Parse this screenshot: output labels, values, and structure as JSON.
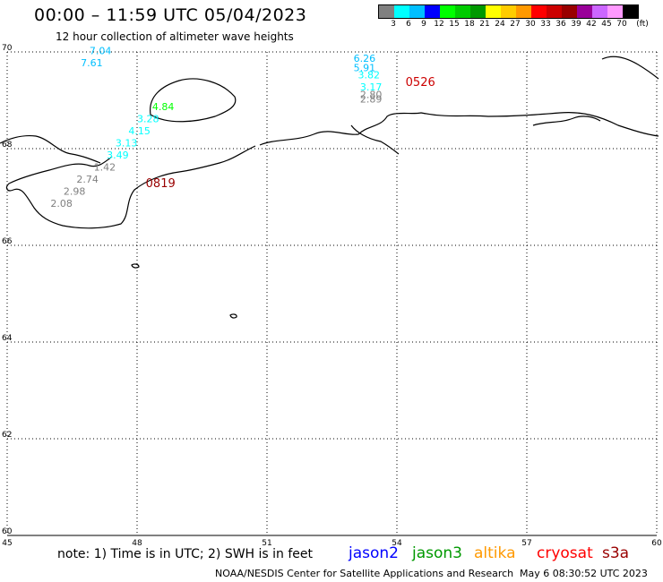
{
  "header": {
    "title": "00:00 – 11:59 UTC 05/04/2023",
    "subtitle": "12 hour collection of altimeter wave heights"
  },
  "colorbar": {
    "colors": [
      "#808080",
      "#00ffff",
      "#00bfff",
      "#0000ff",
      "#00ff00",
      "#00cc00",
      "#009900",
      "#ffff00",
      "#ffcc00",
      "#ff9900",
      "#ff0000",
      "#cc0000",
      "#990000",
      "#990099",
      "#cc66ff",
      "#ff99ff",
      "#000000"
    ],
    "labels": [
      "3",
      "6",
      "9",
      "12",
      "15",
      "18",
      "21",
      "24",
      "27",
      "30",
      "33",
      "36",
      "39",
      "42",
      "45",
      "70"
    ],
    "unit": "(ft)"
  },
  "map": {
    "lat_ticks": [
      "60",
      "62",
      "64",
      "66",
      "68",
      "70"
    ],
    "lon_ticks": [
      "45",
      "48",
      "51",
      "54",
      "57",
      "60"
    ],
    "lat_range": [
      60,
      70
    ],
    "lon_range": [
      45,
      60
    ],
    "grid": "dotted",
    "pass_times": [
      {
        "text": "0819",
        "color": "#990000",
        "lon": 48.2,
        "lat": 67.2
      },
      {
        "text": "0526",
        "color": "#cc0000",
        "lon": 54.2,
        "lat": 69.3
      }
    ],
    "wave_heights": [
      {
        "text": "7.04",
        "color": "#00bfff",
        "lon": 46.9,
        "lat": 69.95
      },
      {
        "text": "7.61",
        "color": "#00bfff",
        "lon": 46.7,
        "lat": 69.7
      },
      {
        "text": "6.26",
        "color": "#00bfff",
        "lon": 53.0,
        "lat": 69.8
      },
      {
        "text": "5.91",
        "color": "#00bfff",
        "lon": 53.0,
        "lat": 69.6
      },
      {
        "text": "3.82",
        "color": "#00ffff",
        "lon": 53.1,
        "lat": 69.45
      },
      {
        "text": "3.17",
        "color": "#00ffff",
        "lon": 53.15,
        "lat": 69.2
      },
      {
        "text": "2.80",
        "color": "#808080",
        "lon": 53.15,
        "lat": 69.05
      },
      {
        "text": "2.89",
        "color": "#808080",
        "lon": 53.15,
        "lat": 68.95
      },
      {
        "text": "4.84",
        "color": "#00ff00",
        "lon": 48.35,
        "lat": 68.8
      },
      {
        "text": "3.28",
        "color": "#00ffff",
        "lon": 48.0,
        "lat": 68.55
      },
      {
        "text": "4.15",
        "color": "#00ffff",
        "lon": 47.8,
        "lat": 68.3
      },
      {
        "text": "3.13",
        "color": "#00ffff",
        "lon": 47.5,
        "lat": 68.05
      },
      {
        "text": "3.49",
        "color": "#00ffff",
        "lon": 47.3,
        "lat": 67.8
      },
      {
        "text": "1.42",
        "color": "#808080",
        "lon": 47.0,
        "lat": 67.55
      },
      {
        "text": "2.74",
        "color": "#808080",
        "lon": 46.6,
        "lat": 67.3
      },
      {
        "text": "2.98",
        "color": "#808080",
        "lon": 46.3,
        "lat": 67.05
      },
      {
        "text": "2.08",
        "color": "#808080",
        "lon": 46.0,
        "lat": 66.8
      }
    ]
  },
  "footer": {
    "note": "note: 1) Time is in UTC; 2) SWH is in feet",
    "satellites": [
      {
        "name": "jason2",
        "color": "#0000ff"
      },
      {
        "name": "jason3",
        "color": "#009900"
      },
      {
        "name": "altika",
        "color": "#ff9900"
      },
      {
        "name": "cryosat",
        "color": "#ff0000"
      },
      {
        "name": "s3a",
        "color": "#990000"
      }
    ],
    "credit": "NOAA/NESDIS Center for Satellite Applications and Research",
    "timestamp": "May  6 08:30:52 UTC 2023"
  }
}
